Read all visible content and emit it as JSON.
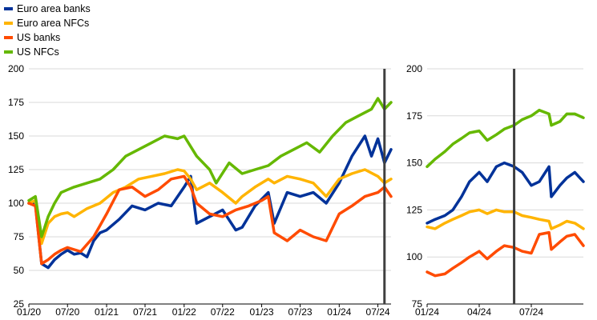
{
  "colors": {
    "euro_banks": "#003299",
    "euro_nfcs": "#FFB400",
    "us_banks": "#FF4B00",
    "us_nfcs": "#65B800",
    "grid": "#D9D9D9",
    "marker": "#404040"
  },
  "legend": [
    {
      "label": "Euro area banks",
      "color": "#003299"
    },
    {
      "label": "Euro area NFCs",
      "color": "#FFB400"
    },
    {
      "label": "US banks",
      "color": "#FF4B00"
    },
    {
      "label": "US NFCs",
      "color": "#65B800"
    }
  ],
  "chart_data": [
    {
      "type": "line",
      "title": "",
      "xlabel": "",
      "ylabel": "",
      "x_tick_labels": [
        "01/20",
        "07/20",
        "01/21",
        "07/21",
        "01/22",
        "07/22",
        "01/23",
        "07/23",
        "01/24",
        "07/24"
      ],
      "y_ticks": [
        25,
        50,
        75,
        100,
        125,
        150,
        175,
        200
      ],
      "ylim": [
        25,
        200
      ],
      "xlim": [
        "2020-01",
        "2024-09"
      ],
      "grid": true,
      "vertical_marker": "2024-08",
      "series": [
        {
          "name": "Euro area banks",
          "color": "#003299",
          "x": [
            "2020-01",
            "2020-02",
            "2020-03",
            "2020-04",
            "2020-05",
            "2020-06",
            "2020-07",
            "2020-08",
            "2020-09",
            "2020-10",
            "2020-11",
            "2020-12",
            "2021-01",
            "2021-03",
            "2021-05",
            "2021-07",
            "2021-09",
            "2021-11",
            "2022-01",
            "2022-02",
            "2022-03",
            "2022-05",
            "2022-07",
            "2022-09",
            "2022-10",
            "2022-12",
            "2023-02",
            "2023-03",
            "2023-05",
            "2023-07",
            "2023-09",
            "2023-11",
            "2024-01",
            "2024-03",
            "2024-05",
            "2024-06",
            "2024-07",
            "2024-08",
            "2024-09"
          ],
          "y": [
            100,
            99,
            55,
            52,
            58,
            62,
            65,
            62,
            63,
            60,
            72,
            78,
            80,
            88,
            98,
            95,
            100,
            98,
            112,
            120,
            85,
            90,
            95,
            80,
            82,
            98,
            108,
            85,
            108,
            105,
            108,
            100,
            115,
            135,
            150,
            135,
            148,
            130,
            140
          ]
        },
        {
          "name": "Euro area NFCs",
          "color": "#FFB400",
          "x": [
            "2020-01",
            "2020-02",
            "2020-03",
            "2020-04",
            "2020-05",
            "2020-06",
            "2020-07",
            "2020-08",
            "2020-10",
            "2020-12",
            "2021-02",
            "2021-04",
            "2021-06",
            "2021-08",
            "2021-10",
            "2021-12",
            "2022-01",
            "2022-02",
            "2022-03",
            "2022-05",
            "2022-07",
            "2022-09",
            "2022-10",
            "2022-12",
            "2023-02",
            "2023-03",
            "2023-05",
            "2023-07",
            "2023-09",
            "2023-11",
            "2024-01",
            "2024-03",
            "2024-05",
            "2024-07",
            "2024-08",
            "2024-09"
          ],
          "y": [
            100,
            102,
            70,
            85,
            90,
            92,
            93,
            90,
            96,
            100,
            108,
            112,
            118,
            120,
            122,
            125,
            124,
            118,
            110,
            115,
            108,
            100,
            105,
            112,
            118,
            115,
            120,
            118,
            115,
            105,
            118,
            122,
            125,
            120,
            115,
            118
          ]
        },
        {
          "name": "US banks",
          "color": "#FF4B00",
          "x": [
            "2020-01",
            "2020-02",
            "2020-03",
            "2020-04",
            "2020-05",
            "2020-06",
            "2020-07",
            "2020-09",
            "2020-11",
            "2021-01",
            "2021-03",
            "2021-05",
            "2021-07",
            "2021-09",
            "2021-11",
            "2022-01",
            "2022-02",
            "2022-03",
            "2022-05",
            "2022-07",
            "2022-09",
            "2022-11",
            "2023-01",
            "2023-02",
            "2023-03",
            "2023-05",
            "2023-07",
            "2023-09",
            "2023-11",
            "2024-01",
            "2024-03",
            "2024-05",
            "2024-07",
            "2024-08",
            "2024-09"
          ],
          "y": [
            100,
            98,
            55,
            58,
            62,
            65,
            67,
            64,
            75,
            92,
            110,
            112,
            105,
            110,
            118,
            120,
            112,
            100,
            92,
            90,
            95,
            98,
            102,
            105,
            78,
            72,
            80,
            75,
            72,
            92,
            98,
            105,
            108,
            112,
            105
          ]
        },
        {
          "name": "US NFCs",
          "color": "#65B800",
          "x": [
            "2020-01",
            "2020-02",
            "2020-03",
            "2020-04",
            "2020-05",
            "2020-06",
            "2020-07",
            "2020-08",
            "2020-10",
            "2020-12",
            "2021-02",
            "2021-04",
            "2021-06",
            "2021-08",
            "2021-10",
            "2021-12",
            "2022-01",
            "2022-03",
            "2022-05",
            "2022-06",
            "2022-08",
            "2022-10",
            "2022-12",
            "2023-02",
            "2023-04",
            "2023-06",
            "2023-08",
            "2023-10",
            "2023-12",
            "2024-02",
            "2024-04",
            "2024-06",
            "2024-07",
            "2024-08",
            "2024-09"
          ],
          "y": [
            102,
            105,
            75,
            90,
            100,
            108,
            110,
            112,
            115,
            118,
            125,
            135,
            140,
            145,
            150,
            148,
            150,
            135,
            125,
            115,
            130,
            122,
            125,
            128,
            135,
            140,
            145,
            138,
            150,
            160,
            165,
            170,
            178,
            170,
            175
          ]
        }
      ]
    },
    {
      "type": "line",
      "title": "",
      "xlabel": "",
      "ylabel": "",
      "x_tick_labels": [
        "01/24",
        "04/24",
        "07/24"
      ],
      "y_ticks": [
        75,
        100,
        125,
        150,
        175,
        200
      ],
      "ylim": [
        75,
        200
      ],
      "xlim": [
        "2024-01-01",
        "2024-09-30"
      ],
      "grid": true,
      "vertical_marker": "2024-06-01",
      "series": [
        {
          "name": "Euro area banks",
          "color": "#003299",
          "x": [
            "2024-01-01",
            "2024-01-15",
            "2024-02-01",
            "2024-02-15",
            "2024-03-01",
            "2024-03-15",
            "2024-04-01",
            "2024-04-15",
            "2024-05-01",
            "2024-05-15",
            "2024-06-01",
            "2024-06-15",
            "2024-07-01",
            "2024-07-15",
            "2024-08-01",
            "2024-08-05",
            "2024-08-20",
            "2024-09-01",
            "2024-09-15",
            "2024-09-30"
          ],
          "y": [
            118,
            120,
            122,
            125,
            132,
            140,
            145,
            140,
            148,
            150,
            148,
            145,
            138,
            140,
            148,
            132,
            138,
            142,
            145,
            140
          ]
        },
        {
          "name": "Euro area NFCs",
          "color": "#FFB400",
          "x": [
            "2024-01-01",
            "2024-01-15",
            "2024-02-01",
            "2024-02-15",
            "2024-03-01",
            "2024-03-15",
            "2024-04-01",
            "2024-04-15",
            "2024-05-01",
            "2024-05-15",
            "2024-06-01",
            "2024-06-15",
            "2024-07-01",
            "2024-07-15",
            "2024-08-01",
            "2024-08-05",
            "2024-08-20",
            "2024-09-01",
            "2024-09-15",
            "2024-09-30"
          ],
          "y": [
            116,
            115,
            118,
            120,
            122,
            124,
            125,
            123,
            125,
            124,
            124,
            122,
            121,
            120,
            119,
            115,
            117,
            119,
            118,
            115
          ]
        },
        {
          "name": "US banks",
          "color": "#FF4B00",
          "x": [
            "2024-01-01",
            "2024-01-15",
            "2024-02-01",
            "2024-02-15",
            "2024-03-01",
            "2024-03-15",
            "2024-04-01",
            "2024-04-15",
            "2024-05-01",
            "2024-05-15",
            "2024-06-01",
            "2024-06-15",
            "2024-07-01",
            "2024-07-15",
            "2024-08-01",
            "2024-08-05",
            "2024-08-20",
            "2024-09-01",
            "2024-09-15",
            "2024-09-30"
          ],
          "y": [
            92,
            90,
            91,
            94,
            97,
            100,
            103,
            99,
            103,
            106,
            105,
            103,
            102,
            112,
            113,
            104,
            108,
            111,
            112,
            106
          ]
        },
        {
          "name": "US NFCs",
          "color": "#65B800",
          "x": [
            "2024-01-01",
            "2024-01-15",
            "2024-02-01",
            "2024-02-15",
            "2024-03-01",
            "2024-03-15",
            "2024-04-01",
            "2024-04-15",
            "2024-05-01",
            "2024-05-15",
            "2024-06-01",
            "2024-06-15",
            "2024-07-01",
            "2024-07-15",
            "2024-08-01",
            "2024-08-05",
            "2024-08-20",
            "2024-09-01",
            "2024-09-15",
            "2024-09-30"
          ],
          "y": [
            148,
            152,
            156,
            160,
            163,
            166,
            167,
            162,
            165,
            168,
            170,
            173,
            175,
            178,
            176,
            170,
            172,
            176,
            176,
            174
          ]
        }
      ]
    }
  ]
}
